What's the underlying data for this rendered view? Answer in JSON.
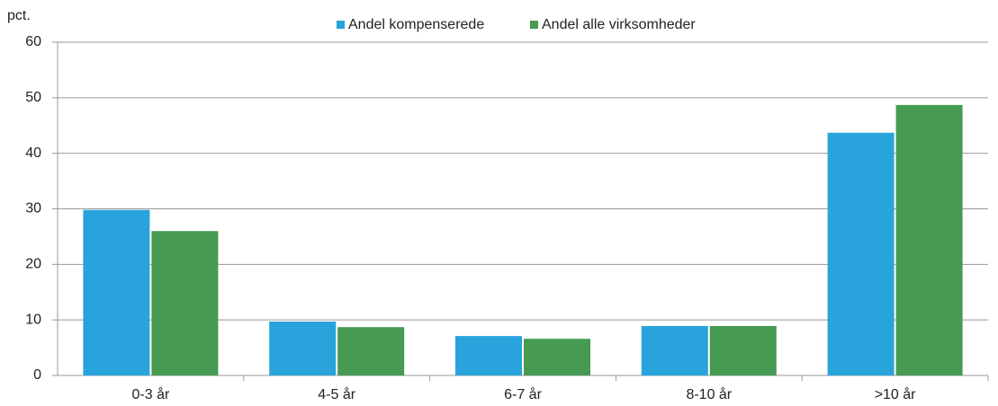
{
  "chart_data": {
    "type": "bar",
    "y_label": "pct.",
    "categories": [
      "0-3 år",
      "4-5 år",
      "6-7 år",
      "8-10 år",
      ">10 år"
    ],
    "series": [
      {
        "name": "Andel kompenserede",
        "color": "#29a3dc",
        "values": [
          29.8,
          9.7,
          7.1,
          8.9,
          43.7
        ]
      },
      {
        "name": "Andel alle virksomheder",
        "color": "#469a52",
        "values": [
          26.0,
          8.7,
          6.6,
          8.9,
          48.7
        ]
      }
    ],
    "ylim": [
      0,
      60
    ],
    "yticks": [
      0,
      10,
      20,
      30,
      40,
      50,
      60
    ],
    "grid": true,
    "legend": "top"
  }
}
